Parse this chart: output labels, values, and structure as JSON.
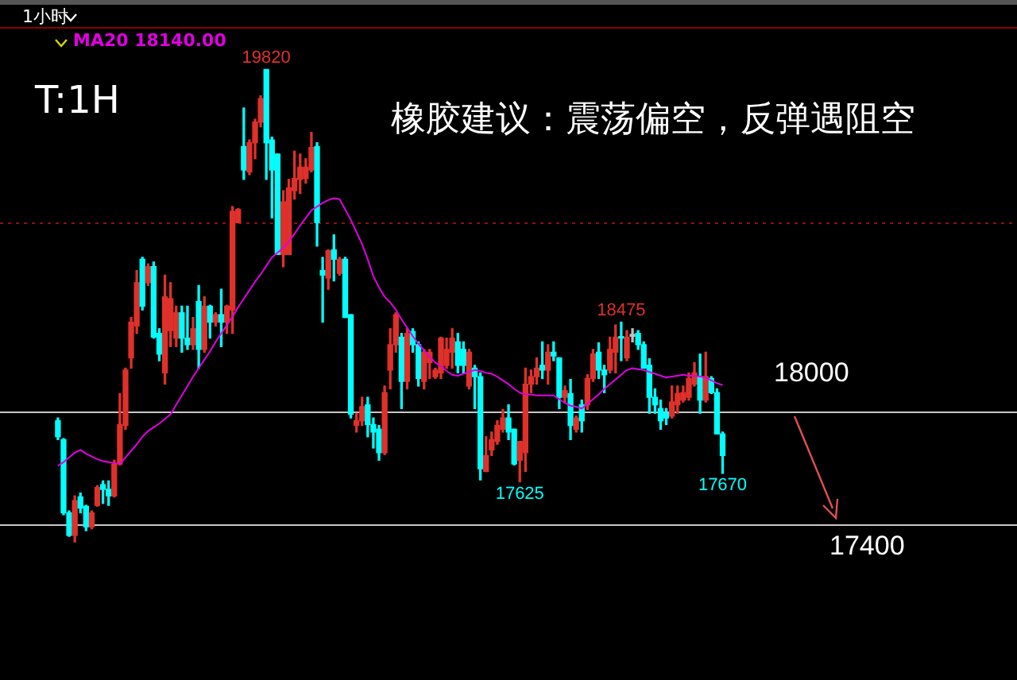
{
  "chart_data": {
    "type": "candlestick",
    "title": "橡胶建议：震荡偏空，反弹遇阻空",
    "annotations": [
      "T:1H",
      "1小时",
      {
        "text": "19820",
        "y": 19820
      },
      {
        "text": "18475",
        "y": 18475
      },
      {
        "text": "17625",
        "y": 17625
      },
      {
        "text": "17670",
        "y": 17670
      }
    ],
    "categories": [
      null,
      null,
      null,
      null,
      null,
      null,
      null,
      null,
      null,
      null,
      null,
      null,
      null,
      null,
      null,
      null,
      null,
      null,
      null,
      null,
      null,
      null,
      null,
      null,
      null,
      null,
      null,
      null,
      null,
      null,
      null,
      null,
      null,
      null,
      null,
      null,
      null,
      null,
      null,
      null,
      null,
      null,
      null,
      null,
      null,
      null,
      null,
      null,
      null,
      null,
      null,
      null,
      null,
      null,
      null,
      null,
      null,
      null,
      null,
      null,
      null,
      null,
      null,
      null,
      null,
      null,
      null,
      null,
      null,
      null,
      null,
      null,
      null,
      null,
      null,
      null,
      null,
      null,
      null,
      null,
      null,
      null,
      null,
      null,
      null,
      null,
      null,
      null,
      null,
      null,
      null,
      null,
      null,
      null,
      null,
      null,
      null,
      null,
      null,
      null,
      null,
      null,
      null,
      null,
      null,
      null,
      null,
      null,
      null,
      null,
      null,
      null,
      null,
      null,
      null,
      null,
      null,
      null,
      null
    ],
    "ohlc": [
      [
        17950,
        17965,
        17850,
        17865
      ],
      [
        17850,
        17855,
        17450,
        17460
      ],
      [
        17460,
        17470,
        17335,
        17340
      ],
      [
        17340,
        17550,
        17305,
        17525
      ],
      [
        17545,
        17565,
        17460,
        17485
      ],
      [
        17495,
        17500,
        17365,
        17385
      ],
      [
        17385,
        17470,
        17375,
        17460
      ],
      [
        17500,
        17605,
        17495,
        17595
      ],
      [
        17610,
        17630,
        17510,
        17585
      ],
      [
        17585,
        17630,
        17500,
        17550
      ],
      [
        17550,
        17740,
        17545,
        17720
      ],
      [
        17720,
        18095,
        17715,
        17930
      ],
      [
        17925,
        18230,
        17905,
        18220
      ],
      [
        18285,
        18500,
        18230,
        18475
      ],
      [
        18455,
        18750,
        18415,
        18685
      ],
      [
        18810,
        18820,
        18540,
        18560
      ],
      [
        18685,
        18785,
        18670,
        18770
      ],
      [
        18770,
        18795,
        18390,
        18395
      ],
      [
        18415,
        18440,
        18270,
        18305
      ],
      [
        18205,
        18725,
        18145,
        18610
      ],
      [
        18430,
        18685,
        18345,
        18600
      ],
      [
        18390,
        18560,
        18345,
        18525
      ],
      [
        18525,
        18560,
        18315,
        18390
      ],
      [
        18390,
        18560,
        18330,
        18355
      ],
      [
        18355,
        18500,
        18330,
        18440
      ],
      [
        18585,
        18670,
        18230,
        18330
      ],
      [
        18330,
        18610,
        18315,
        18560
      ],
      [
        18560,
        18565,
        18390,
        18475
      ],
      [
        18475,
        18525,
        18455,
        18515
      ],
      [
        18515,
        18650,
        18345,
        18475
      ],
      [
        18475,
        18565,
        18415,
        18560
      ],
      [
        18540,
        19090,
        18415,
        19065
      ],
      [
        19005,
        19080,
        19005,
        19075
      ],
      [
        19410,
        19615,
        19235,
        19285
      ],
      [
        19275,
        19445,
        19260,
        19430
      ],
      [
        19430,
        19555,
        19345,
        19540
      ],
      [
        19540,
        19680,
        19515,
        19665
      ],
      [
        19820,
        19820,
        19235,
        19430
      ],
      [
        19445,
        19460,
        19030,
        19285
      ],
      [
        19370,
        19370,
        18835,
        18835
      ],
      [
        18835,
        19175,
        18770,
        19115
      ],
      [
        18835,
        19235,
        18835,
        19190
      ],
      [
        19175,
        19385,
        19130,
        19240
      ],
      [
        19235,
        19370,
        19160,
        19300
      ],
      [
        19240,
        19345,
        19215,
        19300
      ],
      [
        19285,
        19485,
        19275,
        19405
      ],
      [
        19410,
        19430,
        18880,
        19005
      ],
      [
        18750,
        18820,
        18475,
        18725
      ],
      [
        18710,
        18860,
        18650,
        18855
      ],
      [
        18860,
        18940,
        18695,
        18810
      ],
      [
        18735,
        18820,
        18725,
        18810
      ],
      [
        18810,
        18820,
        18500,
        18500
      ],
      [
        18515,
        18515,
        17965,
        17985
      ],
      [
        17925,
        17990,
        17890,
        17950
      ],
      [
        17950,
        18075,
        17925,
        18025
      ],
      [
        18035,
        18075,
        17865,
        17930
      ],
      [
        17930,
        17965,
        17805,
        17890
      ],
      [
        17905,
        17925,
        17740,
        17780
      ],
      [
        17780,
        18135,
        17770,
        18100
      ],
      [
        18220,
        18440,
        18120,
        18355
      ],
      [
        18355,
        18525,
        18315,
        18515
      ],
      [
        18395,
        18415,
        18015,
        18160
      ],
      [
        18160,
        18440,
        18120,
        18415
      ],
      [
        18425,
        18440,
        18315,
        18355
      ],
      [
        18355,
        18370,
        18135,
        18175
      ],
      [
        18160,
        18330,
        18120,
        18315
      ],
      [
        18260,
        18330,
        18175,
        18315
      ],
      [
        18185,
        18230,
        18175,
        18220
      ],
      [
        18205,
        18395,
        18175,
        18390
      ],
      [
        18245,
        18390,
        18230,
        18330
      ],
      [
        18315,
        18440,
        18230,
        18390
      ],
      [
        18370,
        18415,
        18205,
        18245
      ],
      [
        18330,
        18370,
        18205,
        18245
      ],
      [
        18135,
        18330,
        18120,
        18315
      ],
      [
        18230,
        18245,
        18015,
        18185
      ],
      [
        18185,
        18205,
        17635,
        17695
      ],
      [
        17680,
        17865,
        17680,
        17765
      ],
      [
        17795,
        17890,
        17765,
        17850
      ],
      [
        17840,
        17950,
        17825,
        17925
      ],
      [
        17905,
        18010,
        17890,
        17965
      ],
      [
        17965,
        18035,
        17850,
        17890
      ],
      [
        17905,
        17905,
        17715,
        17720
      ],
      [
        17740,
        17840,
        17625,
        17840
      ],
      [
        17780,
        18230,
        17680,
        18145
      ],
      [
        18145,
        18220,
        18100,
        18185
      ],
      [
        18185,
        18285,
        18145,
        18230
      ],
      [
        18245,
        18370,
        18175,
        18220
      ],
      [
        18220,
        18355,
        18145,
        18315
      ],
      [
        18315,
        18370,
        18270,
        18295
      ],
      [
        18285,
        18285,
        18015,
        18075
      ],
      [
        18075,
        18135,
        18050,
        18110
      ],
      [
        18095,
        18170,
        17850,
        17925
      ],
      [
        17905,
        17975,
        17890,
        17965
      ],
      [
        18035,
        18060,
        17890,
        17950
      ],
      [
        18035,
        18195,
        18010,
        18175
      ],
      [
        18175,
        18330,
        18160,
        18305
      ],
      [
        18315,
        18365,
        18175,
        18220
      ],
      [
        18220,
        18245,
        18100,
        18195
      ],
      [
        18220,
        18395,
        18205,
        18330
      ],
      [
        18315,
        18460,
        18205,
        18395
      ],
      [
        18395,
        18475,
        18270,
        18390
      ],
      [
        18285,
        18430,
        18270,
        18395
      ],
      [
        18410,
        18440,
        18370,
        18400
      ],
      [
        18415,
        18430,
        18330,
        18355
      ],
      [
        18355,
        18370,
        18230,
        18230
      ],
      [
        18245,
        18280,
        17990,
        18075
      ],
      [
        18075,
        18120,
        17990,
        18035
      ],
      [
        18015,
        18060,
        17905,
        17950
      ],
      [
        17990,
        18015,
        17930,
        17965
      ],
      [
        17975,
        18135,
        17965,
        18050
      ],
      [
        18035,
        18135,
        17990,
        18095
      ],
      [
        18060,
        18135,
        18050,
        18100
      ],
      [
        18075,
        18205,
        18060,
        18175
      ],
      [
        18145,
        18260,
        18135,
        18205
      ],
      [
        18185,
        18305,
        17990,
        18060
      ],
      [
        18060,
        18315,
        18050,
        18185
      ],
      [
        18175,
        18185,
        18095,
        18100
      ],
      [
        18100,
        18120,
        17880,
        17880
      ],
      [
        17880,
        17890,
        17670,
        17765
      ]
    ],
    "colors": [
      "#00ffff",
      "#00ffff",
      "#00ffff",
      "#e0302a",
      "#00ffff",
      "#00ffff",
      "#e0302a",
      "#e0302a",
      "#00ffff",
      "#00ffff",
      "#e0302a",
      "#e0302a",
      "#e0302a",
      "#e0302a",
      "#e0302a",
      "#00ffff",
      "#e0302a",
      "#00ffff",
      "#00ffff",
      "#e0302a",
      "#e0302a",
      "#e0302a",
      "#00ffff",
      "#00ffff",
      "#e0302a",
      "#00ffff",
      "#e0302a",
      "#00ffff",
      "#e0302a",
      "#00ffff",
      "#e0302a",
      "#e0302a",
      "#e0302a",
      "#00ffff",
      "#e0302a",
      "#e0302a",
      "#e0302a",
      "#00ffff",
      "#00ffff",
      "#00ffff",
      "#e0302a",
      "#e0302a",
      "#e0302a",
      "#e0302a",
      "#e0302a",
      "#e0302a",
      "#00ffff",
      "#00ffff",
      "#e0302a",
      "#00ffff",
      "#e0302a",
      "#00ffff",
      "#00ffff",
      "#e0302a",
      "#e0302a",
      "#00ffff",
      "#00ffff",
      "#00ffff",
      "#e0302a",
      "#e0302a",
      "#e0302a",
      "#00ffff",
      "#e0302a",
      "#00ffff",
      "#00ffff",
      "#e0302a",
      "#e0302a",
      "#e0302a",
      "#e0302a",
      "#e0302a",
      "#e0302a",
      "#00ffff",
      "#00ffff",
      "#e0302a",
      "#00ffff",
      "#00ffff",
      "#e0302a",
      "#e0302a",
      "#e0302a",
      "#e0302a",
      "#00ffff",
      "#00ffff",
      "#e0302a",
      "#e0302a",
      "#e0302a",
      "#e0302a",
      "#00ffff",
      "#e0302a",
      "#00ffff",
      "#00ffff",
      "#e0302a",
      "#00ffff",
      "#e0302a",
      "#00ffff",
      "#e0302a",
      "#e0302a",
      "#00ffff",
      "#00ffff",
      "#e0302a",
      "#e0302a",
      "#00ffff",
      "#e0302a",
      "#c0c0c0",
      "#00ffff",
      "#00ffff",
      "#00ffff",
      "#00ffff",
      "#00ffff",
      "#00ffff",
      "#e0302a",
      "#e0302a",
      "#e0302a",
      "#e0302a",
      "#e0302a",
      "#00ffff",
      "#e0302a",
      "#00ffff",
      "#00ffff",
      "#00ffff"
    ],
    "series": [
      {
        "name": "MA20 18140.00",
        "type": "line",
        "color": "#e000e0",
        "values": [
          17710,
          17730,
          17755,
          17780,
          17795,
          17775,
          17760,
          17745,
          17735,
          17730,
          17725,
          17720,
          17755,
          17790,
          17825,
          17865,
          17895,
          17915,
          17935,
          17960,
          17985,
          18035,
          18085,
          18135,
          18185,
          18230,
          18275,
          18320,
          18370,
          18415,
          18460,
          18505,
          18555,
          18600,
          18645,
          18690,
          18730,
          18775,
          18820,
          18845,
          18870,
          18905,
          18945,
          18990,
          19030,
          19070,
          19090,
          19110,
          19125,
          19135,
          19130,
          19075,
          19020,
          18955,
          18890,
          18810,
          18720,
          18660,
          18610,
          18580,
          18540,
          18490,
          18445,
          18400,
          18360,
          18325,
          18290,
          18260,
          18240,
          18215,
          18195,
          18190,
          18200,
          18210,
          18220,
          18215,
          18205,
          18200,
          18185,
          18165,
          18145,
          18120,
          18100,
          18090,
          18090,
          18085,
          18085,
          18085,
          18085,
          18065,
          18045,
          18030,
          18025,
          18015,
          18040,
          18065,
          18090,
          18120,
          18145,
          18170,
          18195,
          18220,
          18230,
          18225,
          18220,
          18210,
          18200,
          18190,
          18180,
          18185,
          18190,
          18195,
          18190,
          18190,
          18185,
          18180,
          18165,
          18150,
          18140
        ]
      }
    ],
    "ylim": [
      16570,
      20190
    ],
    "ref_lines": [
      {
        "axis": "y",
        "value": 19005,
        "color": "#8b1111",
        "line_style": "dotted"
      },
      {
        "axis": "y",
        "value": 18000,
        "label": "18000",
        "color": "#c8c8c8"
      },
      {
        "axis": "y",
        "value": 17400,
        "label": "17400",
        "color": "#c8c8c8"
      }
    ],
    "legend": "top",
    "tick_labels": false
  }
}
